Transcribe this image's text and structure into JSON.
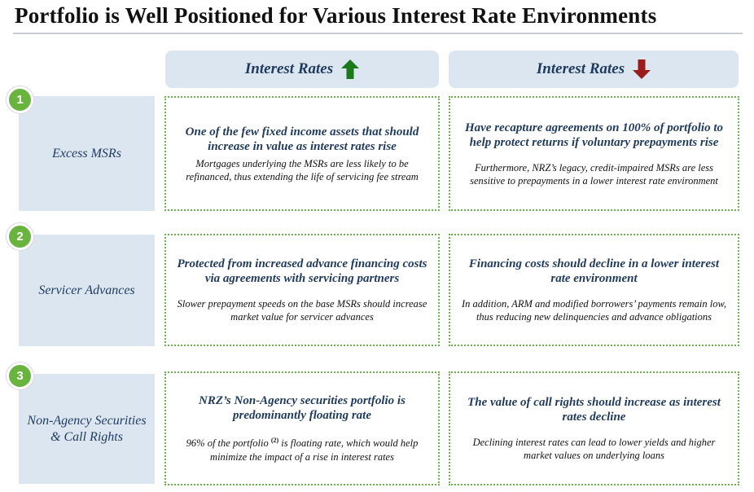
{
  "title": "Portfolio is Well Positioned for Various Interest Rate Environments",
  "columns": {
    "up": {
      "label": "Interest Rates",
      "arrow": "up-arrow-icon",
      "arrow_color": "#1a7a1a"
    },
    "down": {
      "label": "Interest Rates",
      "arrow": "down-arrow-icon",
      "arrow_color": "#9b1c1c"
    }
  },
  "rows": [
    {
      "number": "1",
      "label": "Excess MSRs",
      "up": {
        "headline": "One of the few fixed income assets that should increase in value as interest rates rise",
        "body": "Mortgages underlying the MSRs are less likely to be refinanced, thus extending the life of servicing fee stream"
      },
      "down": {
        "headline": "Have recapture agreements on 100% of portfolio to help protect returns if voluntary prepayments rise",
        "body": "Furthermore, NRZ’s legacy, credit-impaired MSRs are less sensitive to prepayments in a lower interest rate environment"
      }
    },
    {
      "number": "2",
      "label": "Servicer Advances",
      "up": {
        "headline": "Protected from increased advance financing costs via agreements with servicing partners",
        "body": "Slower prepayment speeds on the base MSRs should increase market value for servicer advances"
      },
      "down": {
        "headline": "Financing costs should decline in a lower interest rate environment",
        "body": "In addition, ARM and modified borrowers’ payments remain low, thus reducing new delinquencies and advance obligations"
      }
    },
    {
      "number": "3",
      "label": "Non-Agency Securities & Call Rights",
      "up": {
        "headline": "NRZ’s Non-Agency securities portfolio is predominantly floating rate",
        "body_before": "96% of the portfolio",
        "footnote": "(2)",
        "body_after": "is floating rate, which would help minimize the impact of a rise in interest rates"
      },
      "down": {
        "headline": "The value of call rights should increase as interest rates decline",
        "body": "Declining interest rates can lead to lower yields and higher market values on underlying loans"
      }
    }
  ],
  "colors": {
    "header_fill": "#dbe6f0",
    "text_navy": "#1f3a5f",
    "badge_green": "#69b33f",
    "dotted_border": "#6ab04c"
  }
}
